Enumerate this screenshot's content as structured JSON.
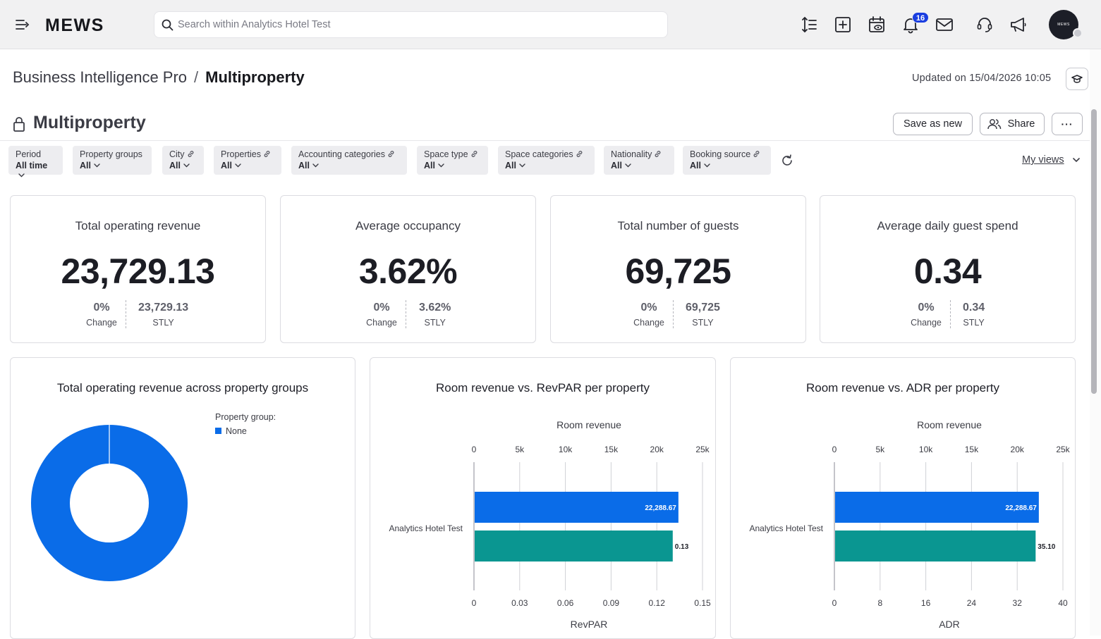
{
  "topbar": {
    "logo": "MEWS",
    "search_placeholder": "Search within Analytics Hotel Test",
    "notification_count": "16",
    "avatar_text": "MEWS"
  },
  "header": {
    "breadcrumb_parent": "Business Intelligence Pro",
    "breadcrumb_sep": "/",
    "breadcrumb_current": "Multiproperty",
    "updated": "Updated on 15/04/2026 10:05",
    "page_title": "Multiproperty",
    "save_as_new": "Save as new",
    "share": "Share",
    "more": "···"
  },
  "filters": [
    {
      "label": "Period",
      "value": "All time",
      "link": false
    },
    {
      "label": "Property groups",
      "value": "All",
      "link": false
    },
    {
      "label": "City",
      "value": "All",
      "link": true
    },
    {
      "label": "Properties",
      "value": "All",
      "link": true
    },
    {
      "label": "Accounting categories",
      "value": "All",
      "link": true
    },
    {
      "label": "Space type",
      "value": "All",
      "link": true
    },
    {
      "label": "Space categories",
      "value": "All",
      "link": true
    },
    {
      "label": "Nationality",
      "value": "All",
      "link": true
    },
    {
      "label": "Booking source",
      "value": "All",
      "link": true
    }
  ],
  "my_views": "My views",
  "kpis": [
    {
      "title": "Total operating revenue",
      "value": "23,729.13",
      "change": "0%",
      "change_label": "Change",
      "stly": "23,729.13",
      "stly_label": "STLY"
    },
    {
      "title": "Average occupancy",
      "value": "3.62%",
      "change": "0%",
      "change_label": "Change",
      "stly": "3.62%",
      "stly_label": "STLY"
    },
    {
      "title": "Total number of guests",
      "value": "69,725",
      "change": "0%",
      "change_label": "Change",
      "stly": "69,725",
      "stly_label": "STLY"
    },
    {
      "title": "Average daily guest spend",
      "value": "0.34",
      "change": "0%",
      "change_label": "Change",
      "stly": "0.34",
      "stly_label": "STLY"
    }
  ],
  "chart_data": [
    {
      "type": "pie",
      "title": "Total operating revenue across property groups",
      "legend_title": "Property group:",
      "categories": [
        "None"
      ],
      "values": [
        100
      ],
      "colors": [
        "#0a6ce8"
      ]
    },
    {
      "type": "bar",
      "title": "Room revenue vs. RevPAR per property",
      "categories": [
        "Analytics Hotel Test"
      ],
      "top_axis": {
        "label": "Room revenue",
        "ticks": [
          "0",
          "5k",
          "10k",
          "15k",
          "20k",
          "25k"
        ],
        "range": [
          0,
          25000
        ]
      },
      "bottom_axis": {
        "label": "RevPAR",
        "ticks": [
          "0",
          "0.03",
          "0.06",
          "0.09",
          "0.12",
          "0.15"
        ],
        "range": [
          0,
          0.15
        ]
      },
      "series": [
        {
          "name": "Room revenue",
          "values": [
            22288.67
          ],
          "labels": [
            "22,288.67"
          ],
          "color": "#0a6ce8",
          "axis": "top"
        },
        {
          "name": "RevPAR",
          "values": [
            0.13
          ],
          "labels": [
            "0.13"
          ],
          "color": "#0a9691",
          "axis": "bottom"
        }
      ]
    },
    {
      "type": "bar",
      "title": "Room revenue vs. ADR per property",
      "categories": [
        "Analytics Hotel Test"
      ],
      "top_axis": {
        "label": "Room revenue",
        "ticks": [
          "0",
          "5k",
          "10k",
          "15k",
          "20k",
          "25k"
        ],
        "range": [
          0,
          25000
        ]
      },
      "bottom_axis": {
        "label": "ADR",
        "ticks": [
          "0",
          "8",
          "16",
          "24",
          "32",
          "40"
        ],
        "range": [
          0,
          40
        ]
      },
      "series": [
        {
          "name": "Room revenue",
          "values": [
            22288.67
          ],
          "labels": [
            "22,288.67"
          ],
          "color": "#0a6ce8",
          "axis": "top"
        },
        {
          "name": "ADR",
          "values": [
            35.1
          ],
          "labels": [
            "35.10"
          ],
          "color": "#0a9691",
          "axis": "bottom"
        }
      ]
    }
  ]
}
